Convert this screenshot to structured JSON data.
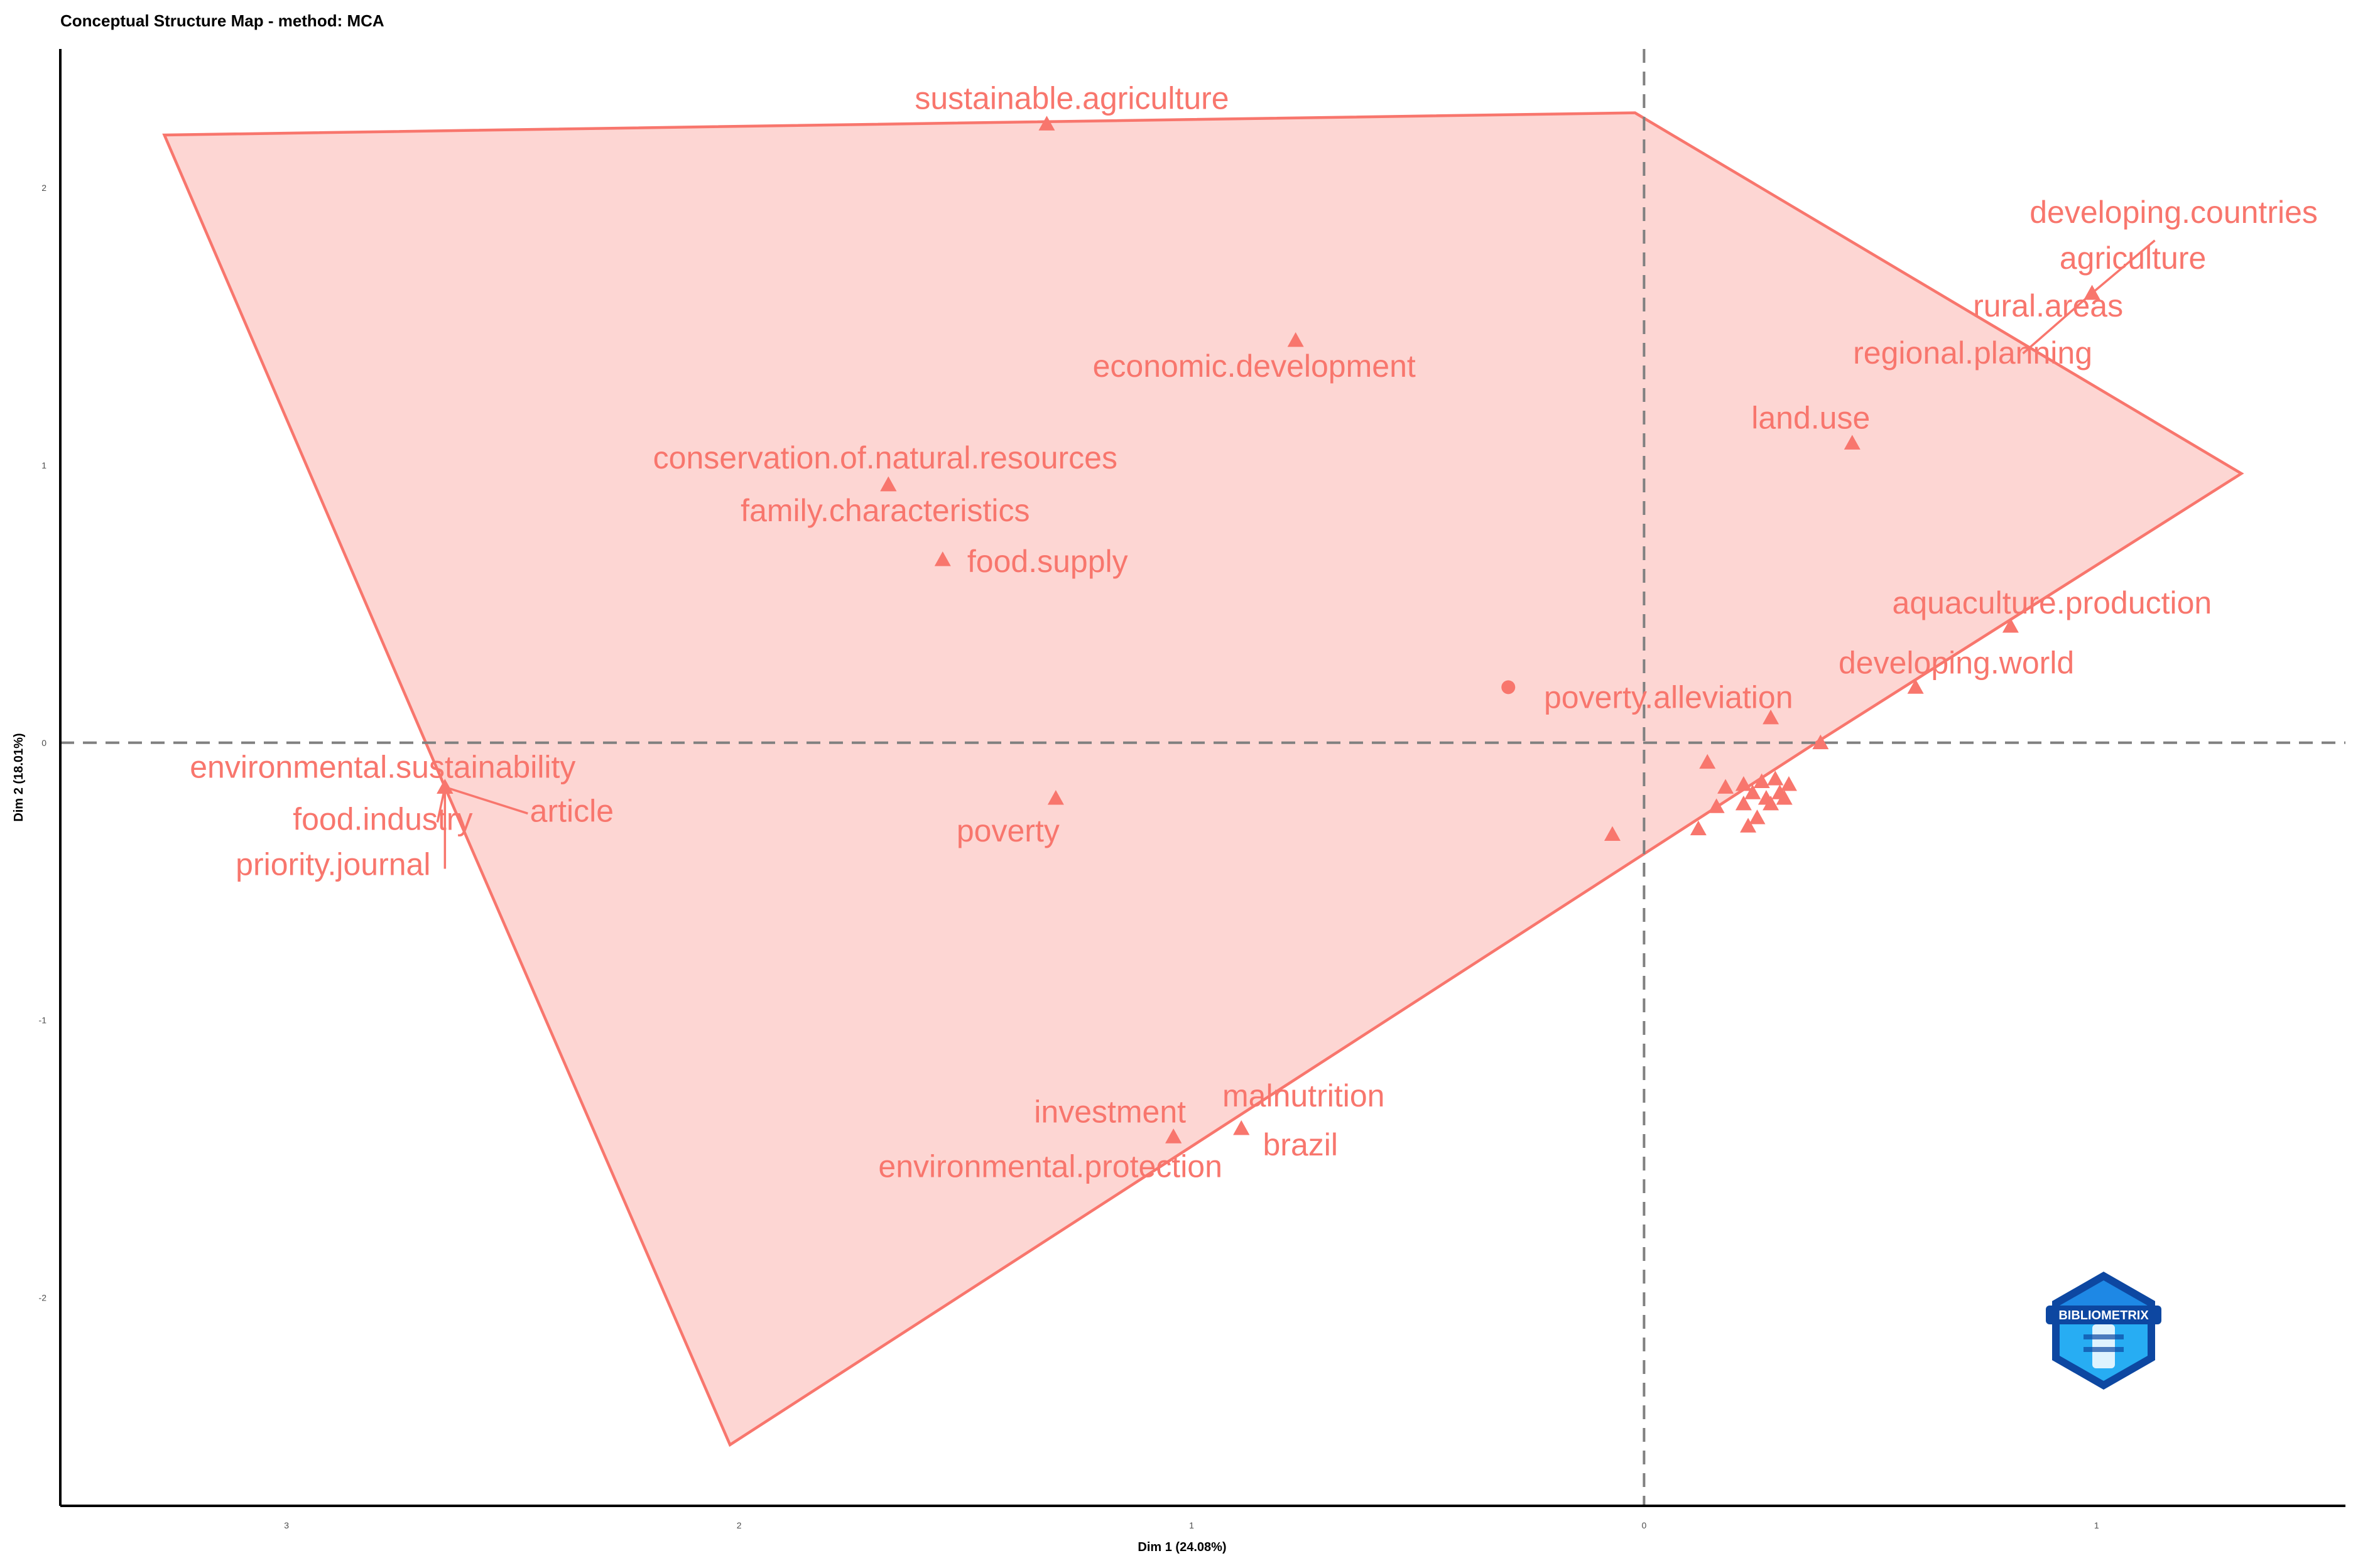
{
  "chart_data": {
    "type": "scatter",
    "title": "Conceptual Structure Map - method: MCA",
    "xlabel": "Dim 1 (24.08%)",
    "ylabel": "Dim 2 (18.01%)",
    "xlim": [
      -3.5,
      1.55
    ],
    "ylim": [
      -2.75,
      2.5
    ],
    "x_ticks": [
      -3,
      -2,
      -1,
      0,
      1
    ],
    "x_tick_labels": [
      "3",
      "2",
      "1",
      "0",
      "1"
    ],
    "y_ticks": [
      2,
      1,
      0,
      -1,
      -2
    ],
    "y_tick_labels": [
      "2",
      "1",
      "0",
      "-1",
      "-2"
    ],
    "zero_lines": true,
    "grid": false,
    "legend": "none",
    "cluster_color": "#f8766d",
    "hull": [
      [
        -3.27,
        2.19
      ],
      [
        -0.02,
        2.27
      ],
      [
        1.32,
        0.97
      ],
      [
        0.38,
        0.0
      ],
      [
        -2.02,
        -2.53
      ],
      [
        -2.65,
        -0.16
      ]
    ],
    "points": [
      {
        "label": "sustainable.agriculture",
        "x": -1.32,
        "y": 2.23
      },
      {
        "label": "developing.countries",
        "x": 0.99,
        "y": 1.62
      },
      {
        "label": "agriculture",
        "x": 0.99,
        "y": 1.62
      },
      {
        "label": "rural.areas",
        "x": 0.99,
        "y": 1.62
      },
      {
        "label": "regional.planning",
        "x": 0.99,
        "y": 1.62
      },
      {
        "label": "economic.development",
        "x": -0.77,
        "y": 1.45
      },
      {
        "label": "land.use",
        "x": 0.46,
        "y": 1.08
      },
      {
        "label": "conservation.of.natural.resources",
        "x": -1.67,
        "y": 0.93
      },
      {
        "label": "family.characteristics",
        "x": -1.67,
        "y": 0.93
      },
      {
        "label": "food.supply",
        "x": -1.55,
        "y": 0.66
      },
      {
        "label": "aquaculture.production",
        "x": 0.81,
        "y": 0.42
      },
      {
        "label": "developing.world",
        "x": 0.6,
        "y": 0.2
      },
      {
        "label": "poverty.alleviation",
        "x": -0.3,
        "y": 0.2,
        "shape": "circle"
      },
      {
        "label": "environmental.sustainability",
        "x": -2.65,
        "y": -0.16
      },
      {
        "label": "food.industry",
        "x": -2.65,
        "y": -0.16
      },
      {
        "label": "article",
        "x": -2.65,
        "y": -0.16
      },
      {
        "label": "priority.journal",
        "x": -2.65,
        "y": -0.16
      },
      {
        "label": "poverty",
        "x": -1.3,
        "y": -0.2
      },
      {
        "label": "investment",
        "x": -1.04,
        "y": -1.42
      },
      {
        "label": "environmental.protection",
        "x": -1.04,
        "y": -1.42
      },
      {
        "label": "malnutrition",
        "x": -0.89,
        "y": -1.39
      },
      {
        "label": "brazil",
        "x": -0.89,
        "y": -1.39
      },
      {
        "label": "",
        "x": 0.28,
        "y": 0.09
      },
      {
        "label": "",
        "x": 0.39,
        "y": 0.0
      },
      {
        "label": "",
        "x": 0.14,
        "y": -0.07
      },
      {
        "label": "",
        "x": 0.18,
        "y": -0.16
      },
      {
        "label": "",
        "x": 0.16,
        "y": -0.23
      },
      {
        "label": "",
        "x": 0.12,
        "y": -0.31
      },
      {
        "label": "",
        "x": -0.07,
        "y": -0.33
      },
      {
        "label": "",
        "x": 0.22,
        "y": -0.15
      },
      {
        "label": "",
        "x": 0.24,
        "y": -0.18
      },
      {
        "label": "",
        "x": 0.26,
        "y": -0.14
      },
      {
        "label": "",
        "x": 0.27,
        "y": -0.2
      },
      {
        "label": "",
        "x": 0.29,
        "y": -0.13
      },
      {
        "label": "",
        "x": 0.3,
        "y": -0.18
      },
      {
        "label": "",
        "x": 0.32,
        "y": -0.15
      },
      {
        "label": "",
        "x": 0.22,
        "y": -0.22
      },
      {
        "label": "",
        "x": 0.25,
        "y": -0.27
      },
      {
        "label": "",
        "x": 0.23,
        "y": -0.3
      },
      {
        "label": "",
        "x": 0.28,
        "y": -0.22
      },
      {
        "label": "",
        "x": 0.31,
        "y": -0.2
      }
    ]
  },
  "watermark": {
    "text": "BIBLIOMETRIX",
    "colors": [
      "#1e88e5",
      "#0d47a1",
      "#29b6f6"
    ]
  }
}
